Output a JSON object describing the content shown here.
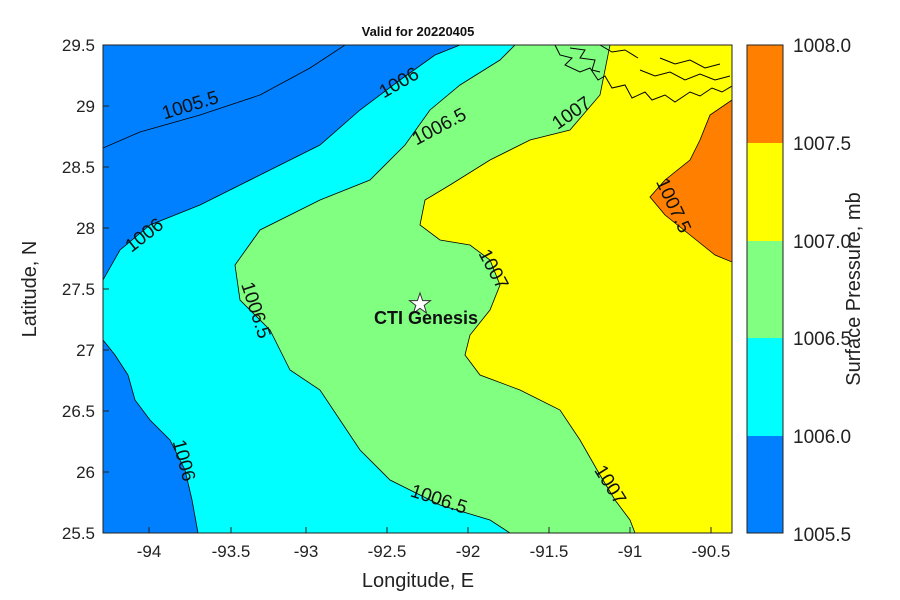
{
  "title": "Valid for 20220405",
  "xlabel": "Longitude, E",
  "ylabel": "Latitude, N",
  "x_ticks": [
    "-94",
    "-93.5",
    "-93",
    "-92.5",
    "-92",
    "-91.5",
    "-91",
    "-90.5"
  ],
  "y_ticks": [
    "29.5",
    "29",
    "28.5",
    "28",
    "27.5",
    "27",
    "26.5",
    "26",
    "25.5"
  ],
  "colorbar": {
    "label": "Surface Pressure, mb",
    "ticks": [
      "1008.0",
      "1007.5",
      "1007.0",
      "1006.5",
      "1006.0",
      "1005.5"
    ],
    "bands": [
      {
        "from": 1007.5,
        "to": 1008.0,
        "color": "#ff8000"
      },
      {
        "from": 1007.0,
        "to": 1007.5,
        "color": "#ffff00"
      },
      {
        "from": 1006.5,
        "to": 1007.0,
        "color": "#80ff80"
      },
      {
        "from": 1006.0,
        "to": 1006.5,
        "color": "#00ffff"
      },
      {
        "from": 1005.5,
        "to": 1006.0,
        "color": "#0080ff"
      }
    ]
  },
  "contour_labels": {
    "c1": "1005.5",
    "c2": "1006",
    "c3": "1006.5",
    "c4": "1007",
    "c5": "1006",
    "c6": "1006.5",
    "c7": "1007",
    "c8": "1007.5",
    "c9": "1006",
    "c10": "1006.5",
    "c11": "1007"
  },
  "marker": {
    "name": "CTI Genesis",
    "lon": -92.25,
    "lat": 27.38,
    "symbol": "star"
  },
  "map_extent": {
    "lon": [
      -94.3,
      -90.25
    ],
    "lat": [
      25.5,
      29.5
    ]
  },
  "colors": {
    "coast": "#000000",
    "contour": "#000000"
  }
}
